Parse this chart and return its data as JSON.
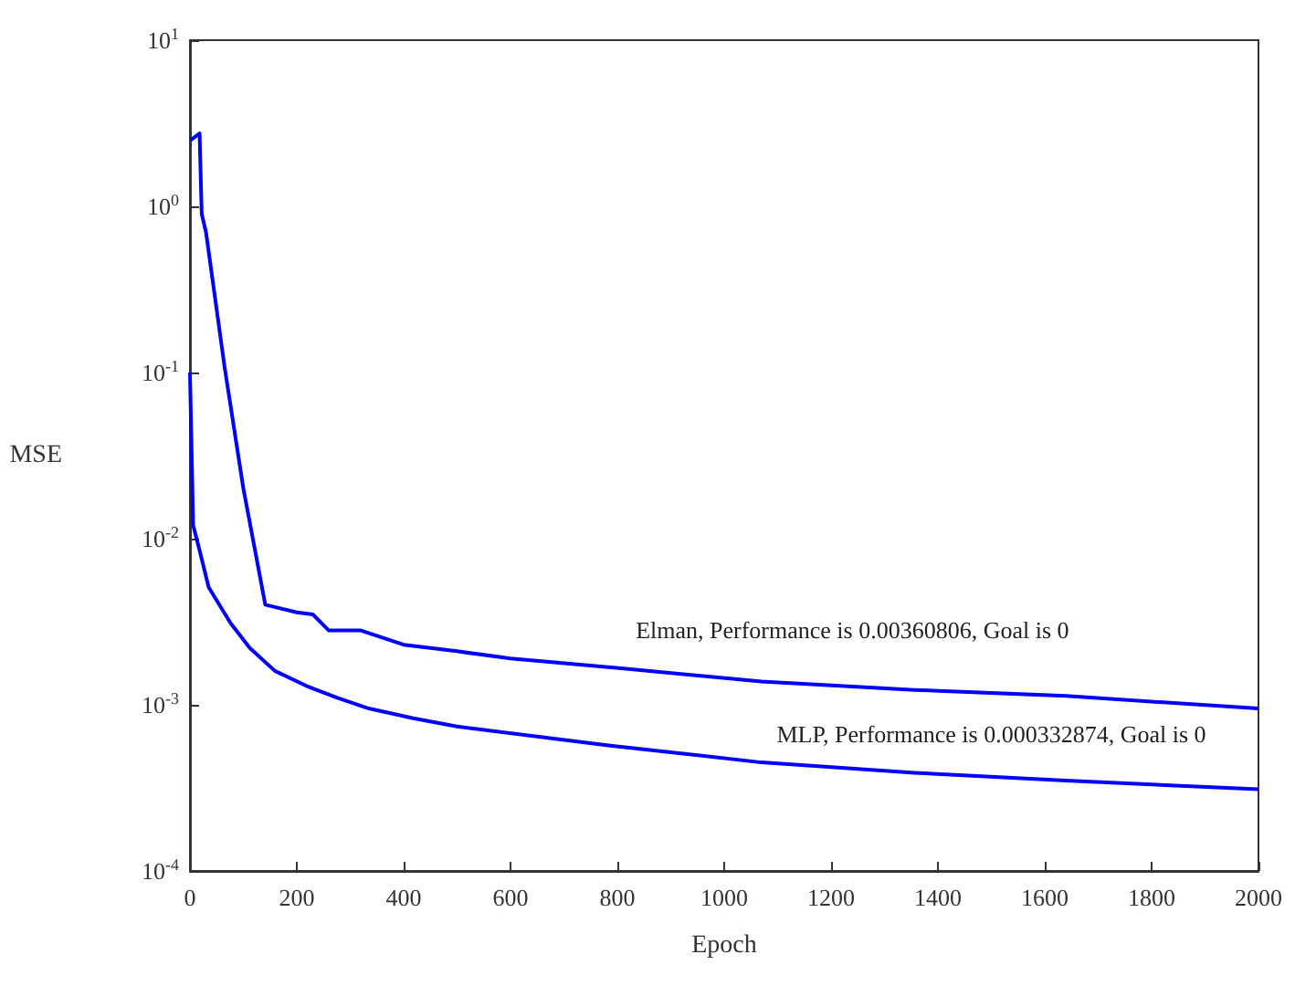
{
  "chart_data": {
    "type": "line",
    "xlabel": "Epoch",
    "ylabel": "MSE",
    "log": "y",
    "grid": false,
    "marker": "none",
    "line_style": "solid",
    "xlim": [
      0,
      2000
    ],
    "xticks": [
      0,
      200,
      400,
      600,
      800,
      1000,
      1200,
      1400,
      1600,
      1800,
      2000
    ],
    "ylim": [
      0.0001,
      10
    ],
    "yticks": [
      {
        "value": 0.0001,
        "label": "10$^{-4}$"
      },
      {
        "value": 0.001,
        "label": "10$^{-3}$"
      },
      {
        "value": 0.01,
        "label": "10$^{-2}$"
      },
      {
        "value": 0.1,
        "label": "10$^{-1}$"
      },
      {
        "value": 1,
        "label": "10$^{0}$"
      },
      {
        "value": 10,
        "label": "10$^{1}$"
      }
    ],
    "series": [
      {
        "color": "#0000ff",
        "x": [
          1,
          18,
          22,
          30,
          65,
          100,
          141,
          200,
          230,
          260,
          320,
          400,
          500,
          600,
          807,
          1070,
          1356,
          1640,
          2000
        ],
        "values": [
          2.5,
          2.75,
          0.9,
          0.7,
          0.107,
          0.02,
          0.004,
          0.0036,
          0.0035,
          0.0028,
          0.0028,
          0.0023,
          0.0021,
          0.0019,
          0.00166,
          0.00138,
          0.00123,
          0.00113,
          0.00095
        ]
      },
      {
        "color": "#0000ff",
        "x": [
          0,
          6,
          18,
          35,
          76,
          112,
          159,
          218,
          276,
          335,
          418,
          500,
          783,
          1070,
          1356,
          1640,
          2000
        ],
        "values": [
          0.1,
          0.012,
          0.0085,
          0.0051,
          0.0031,
          0.0022,
          0.0016,
          0.0013,
          0.0011,
          0.00095,
          0.00083,
          0.00074,
          0.00057,
          0.00045,
          0.00039,
          0.00035,
          0.00031
        ]
      }
    ],
    "annotations": [
      "Elman, Performance is 0.00360806, Goal is 0",
      "MLP, Performance is 0.000332874, Goal is 0"
    ]
  }
}
